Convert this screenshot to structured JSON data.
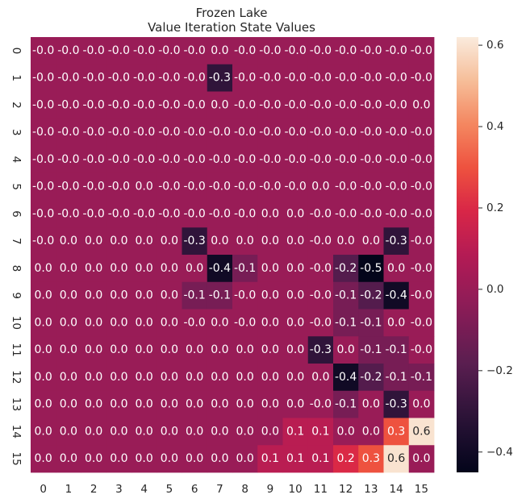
{
  "chart_data": {
    "type": "heatmap",
    "title_lines": [
      "Frozen Lake",
      "Value Iteration State Values"
    ],
    "x_ticks": [
      "0",
      "1",
      "2",
      "3",
      "4",
      "5",
      "6",
      "7",
      "8",
      "9",
      "10",
      "11",
      "12",
      "13",
      "14",
      "15"
    ],
    "y_ticks": [
      "0",
      "1",
      "2",
      "3",
      "4",
      "5",
      "6",
      "7",
      "8",
      "9",
      "10",
      "11",
      "12",
      "13",
      "14",
      "15"
    ],
    "colorbar": {
      "min": -0.45,
      "max": 0.62,
      "ticks": [
        "0.6",
        "0.4",
        "0.2",
        "0.0",
        "−0.2",
        "−0.4"
      ]
    },
    "colorbar_tick_values": [
      0.6,
      0.4,
      0.2,
      0.0,
      -0.2,
      -0.4
    ],
    "colormap": "rocket",
    "values": [
      [
        -0.001,
        -0.001,
        -0.001,
        -0.001,
        -0.001,
        -0.001,
        -0.001,
        0.001,
        -0.001,
        -0.001,
        -0.001,
        -0.001,
        -0.001,
        -0.001,
        -0.001,
        -0.001
      ],
      [
        -0.001,
        -0.001,
        -0.001,
        -0.001,
        -0.001,
        -0.001,
        -0.001,
        -0.3,
        -0.001,
        -0.001,
        -0.001,
        -0.001,
        -0.001,
        -0.001,
        -0.001,
        -0.001
      ],
      [
        -0.001,
        -0.001,
        -0.001,
        -0.001,
        -0.001,
        -0.001,
        -0.001,
        0.001,
        -0.001,
        -0.001,
        -0.001,
        -0.001,
        -0.001,
        -0.001,
        -0.001,
        0.001
      ],
      [
        -0.001,
        -0.001,
        -0.001,
        -0.001,
        -0.001,
        -0.001,
        -0.001,
        -0.001,
        -0.001,
        -0.001,
        -0.001,
        -0.001,
        -0.001,
        -0.001,
        -0.001,
        -0.001
      ],
      [
        -0.001,
        -0.001,
        -0.001,
        -0.001,
        -0.001,
        -0.001,
        -0.001,
        -0.001,
        -0.001,
        -0.001,
        -0.001,
        -0.001,
        -0.001,
        -0.001,
        -0.001,
        -0.001
      ],
      [
        -0.001,
        -0.001,
        -0.001,
        -0.001,
        0.001,
        -0.001,
        -0.001,
        -0.001,
        -0.001,
        -0.001,
        -0.001,
        0.001,
        -0.001,
        -0.001,
        -0.001,
        -0.001
      ],
      [
        -0.001,
        -0.001,
        -0.001,
        -0.001,
        -0.001,
        -0.001,
        -0.001,
        -0.001,
        -0.001,
        0.001,
        0.001,
        -0.001,
        -0.001,
        -0.001,
        -0.001,
        -0.001
      ],
      [
        -0.001,
        0.001,
        0.001,
        0.001,
        0.001,
        0.001,
        -0.3,
        0.001,
        0.001,
        0.001,
        0.001,
        -0.001,
        0.001,
        0.001,
        -0.3,
        -0.001
      ],
      [
        0.001,
        0.001,
        0.001,
        0.001,
        0.001,
        0.001,
        0.001,
        -0.4,
        -0.1,
        0.001,
        0.001,
        -0.001,
        -0.2,
        -0.5,
        0.001,
        -0.001
      ],
      [
        0.001,
        0.001,
        0.001,
        0.001,
        0.001,
        0.001,
        -0.1,
        -0.1,
        -0.001,
        0.001,
        0.001,
        -0.001,
        -0.1,
        -0.2,
        -0.4,
        -0.001
      ],
      [
        0.001,
        0.001,
        0.001,
        0.001,
        0.001,
        0.001,
        -0.001,
        0.001,
        -0.001,
        0.001,
        0.001,
        -0.001,
        -0.1,
        -0.1,
        0.001,
        -0.001
      ],
      [
        0.001,
        0.001,
        0.001,
        0.001,
        0.001,
        0.001,
        0.001,
        0.001,
        0.001,
        0.001,
        0.001,
        -0.3,
        0.001,
        -0.1,
        -0.1,
        -0.001
      ],
      [
        0.001,
        0.001,
        0.001,
        0.001,
        0.001,
        0.001,
        0.001,
        0.001,
        0.001,
        0.001,
        0.001,
        0.001,
        -0.4,
        -0.2,
        -0.1,
        -0.1
      ],
      [
        0.001,
        0.001,
        0.001,
        0.001,
        0.001,
        0.001,
        0.001,
        0.001,
        0.001,
        0.001,
        0.001,
        -0.001,
        -0.1,
        0.001,
        -0.3,
        0.001
      ],
      [
        0.001,
        0.001,
        0.001,
        0.001,
        0.001,
        0.001,
        0.001,
        0.001,
        0.001,
        0.001,
        0.1,
        0.1,
        0.001,
        0.001,
        0.3,
        0.6
      ],
      [
        0.001,
        0.001,
        0.001,
        0.001,
        0.001,
        0.001,
        0.001,
        0.001,
        0.001,
        0.1,
        0.1,
        0.1,
        0.2,
        0.3,
        0.6,
        0.001
      ]
    ],
    "labels": [
      [
        "-0.0",
        "-0.0",
        "-0.0",
        "-0.0",
        "-0.0",
        "-0.0",
        "-0.0",
        "0.0",
        "-0.0",
        "-0.0",
        "-0.0",
        "-0.0",
        "-0.0",
        "-0.0",
        "-0.0",
        "-0.0"
      ],
      [
        "-0.0",
        "-0.0",
        "-0.0",
        "-0.0",
        "-0.0",
        "-0.0",
        "-0.0",
        "-0.3",
        "-0.0",
        "-0.0",
        "-0.0",
        "-0.0",
        "-0.0",
        "-0.0",
        "-0.0",
        "-0.0"
      ],
      [
        "-0.0",
        "-0.0",
        "-0.0",
        "-0.0",
        "-0.0",
        "-0.0",
        "-0.0",
        "0.0",
        "-0.0",
        "-0.0",
        "-0.0",
        "-0.0",
        "-0.0",
        "-0.0",
        "-0.0",
        "0.0"
      ],
      [
        "-0.0",
        "-0.0",
        "-0.0",
        "-0.0",
        "-0.0",
        "-0.0",
        "-0.0",
        "-0.0",
        "-0.0",
        "-0.0",
        "-0.0",
        "-0.0",
        "-0.0",
        "-0.0",
        "-0.0",
        "-0.0"
      ],
      [
        "-0.0",
        "-0.0",
        "-0.0",
        "-0.0",
        "-0.0",
        "-0.0",
        "-0.0",
        "-0.0",
        "-0.0",
        "-0.0",
        "-0.0",
        "-0.0",
        "-0.0",
        "-0.0",
        "-0.0",
        "-0.0"
      ],
      [
        "-0.0",
        "-0.0",
        "-0.0",
        "-0.0",
        "0.0",
        "-0.0",
        "-0.0",
        "-0.0",
        "-0.0",
        "-0.0",
        "-0.0",
        "0.0",
        "-0.0",
        "-0.0",
        "-0.0",
        "-0.0"
      ],
      [
        "-0.0",
        "-0.0",
        "-0.0",
        "-0.0",
        "-0.0",
        "-0.0",
        "-0.0",
        "-0.0",
        "-0.0",
        "0.0",
        "0.0",
        "-0.0",
        "-0.0",
        "-0.0",
        "-0.0",
        "-0.0"
      ],
      [
        "-0.0",
        "0.0",
        "0.0",
        "0.0",
        "0.0",
        "0.0",
        "-0.3",
        "0.0",
        "0.0",
        "0.0",
        "0.0",
        "-0.0",
        "0.0",
        "0.0",
        "-0.3",
        "-0.0"
      ],
      [
        "0.0",
        "0.0",
        "0.0",
        "0.0",
        "0.0",
        "0.0",
        "0.0",
        "-0.4",
        "-0.1",
        "0.0",
        "0.0",
        "-0.0",
        "-0.2",
        "-0.5",
        "0.0",
        "-0.0"
      ],
      [
        "0.0",
        "0.0",
        "0.0",
        "0.0",
        "0.0",
        "0.0",
        "-0.1",
        "-0.1",
        "-0.0",
        "0.0",
        "0.0",
        "-0.0",
        "-0.1",
        "-0.2",
        "-0.4",
        "-0.0"
      ],
      [
        "0.0",
        "0.0",
        "0.0",
        "0.0",
        "0.0",
        "0.0",
        "-0.0",
        "0.0",
        "-0.0",
        "0.0",
        "0.0",
        "-0.0",
        "-0.1",
        "-0.1",
        "0.0",
        "-0.0"
      ],
      [
        "0.0",
        "0.0",
        "0.0",
        "0.0",
        "0.0",
        "0.0",
        "0.0",
        "0.0",
        "0.0",
        "0.0",
        "0.0",
        "-0.3",
        "0.0",
        "-0.1",
        "-0.1",
        "-0.0"
      ],
      [
        "0.0",
        "0.0",
        "0.0",
        "0.0",
        "0.0",
        "0.0",
        "0.0",
        "0.0",
        "0.0",
        "0.0",
        "0.0",
        "0.0",
        "-0.4",
        "-0.2",
        "-0.1",
        "-0.1"
      ],
      [
        "0.0",
        "0.0",
        "0.0",
        "0.0",
        "0.0",
        "0.0",
        "0.0",
        "0.0",
        "0.0",
        "0.0",
        "0.0",
        "-0.0",
        "-0.1",
        "0.0",
        "-0.3",
        "0.0"
      ],
      [
        "0.0",
        "0.0",
        "0.0",
        "0.0",
        "0.0",
        "0.0",
        "0.0",
        "0.0",
        "0.0",
        "0.0",
        "0.1",
        "0.1",
        "0.0",
        "0.0",
        "0.3",
        "0.6"
      ],
      [
        "0.0",
        "0.0",
        "0.0",
        "0.0",
        "0.0",
        "0.0",
        "0.0",
        "0.0",
        "0.0",
        "0.1",
        "0.1",
        "0.1",
        "0.2",
        "0.3",
        "0.6",
        "0.0"
      ]
    ]
  }
}
